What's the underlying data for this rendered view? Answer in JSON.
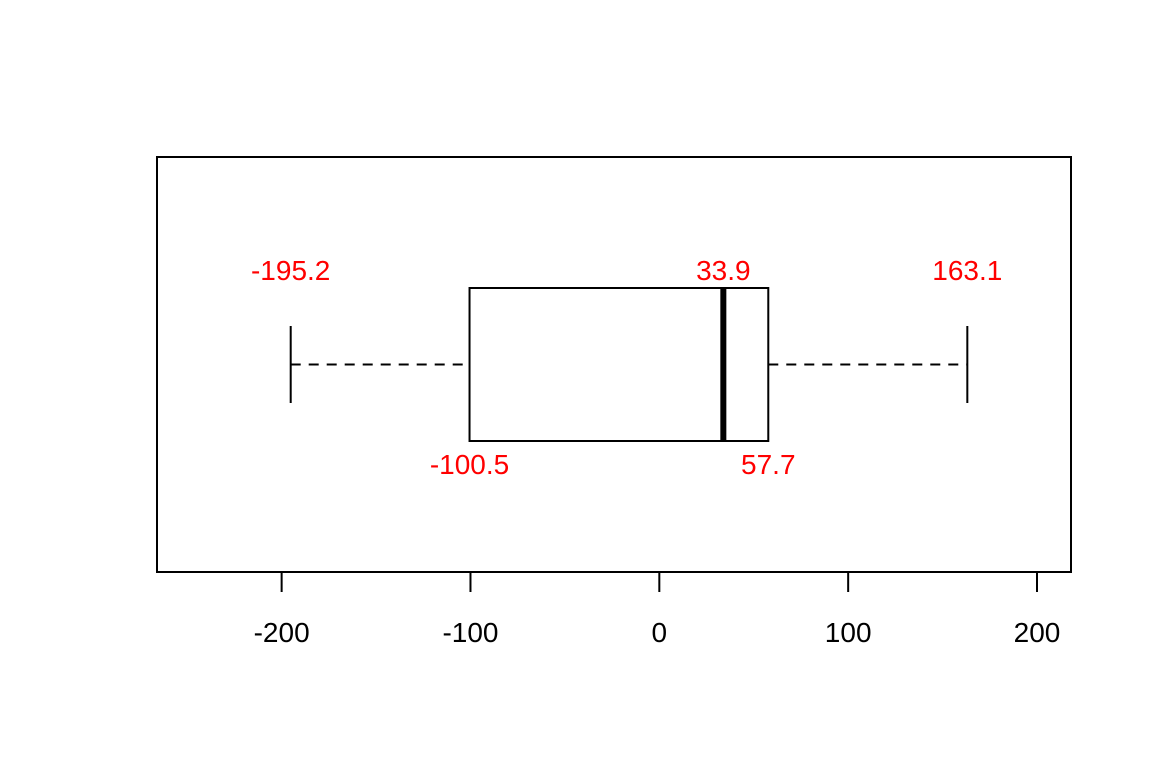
{
  "chart_data": {
    "type": "boxplot",
    "orientation": "horizontal",
    "title": "",
    "xlabel": "",
    "ylabel": "",
    "xlim": [
      -266,
      218
    ],
    "x_ticks": [
      -200,
      -100,
      0,
      100,
      200
    ],
    "x_tick_labels": [
      "-200",
      "-100",
      "0",
      "100",
      "200"
    ],
    "grid": false,
    "box": {
      "whisker_low": -195.2,
      "q1": -100.5,
      "median": 33.9,
      "q3": 57.7,
      "whisker_high": 163.1
    },
    "annotations": [
      {
        "key": "whisker_low",
        "text": "-195.2",
        "position": "above"
      },
      {
        "key": "median",
        "text": "33.9",
        "position": "above"
      },
      {
        "key": "whisker_high",
        "text": "163.1",
        "position": "above"
      },
      {
        "key": "q1",
        "text": "-100.5",
        "position": "below"
      },
      {
        "key": "q3",
        "text": "57.7",
        "position": "below"
      }
    ],
    "colors": {
      "annotation": "#ff0000",
      "lines": "#000000"
    }
  }
}
